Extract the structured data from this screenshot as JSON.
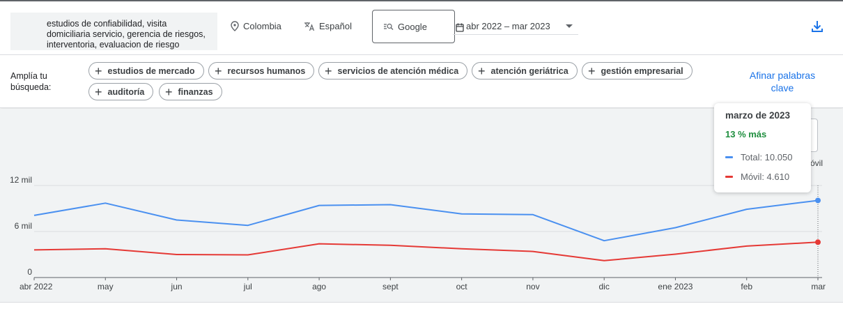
{
  "header": {
    "keywords_text": "estudios de confiabilidad, visita domiciliaria servicio, gerencia de riesgos, interventoria, evaluacion de riesgo",
    "location": "Colombia",
    "language": "Español",
    "search_engine": "Google",
    "date_range": "abr 2022 – mar 2023"
  },
  "refine": {
    "label": "Amplía tu búsqueda:",
    "chips": [
      "estudios de mercado",
      "recursos humanos",
      "servicios de atención médica",
      "atención geriátrica",
      "gestión empresarial",
      "auditoría",
      "finanzas"
    ],
    "link": "Afinar palabras clave"
  },
  "background_text": {
    "movil_label": "óvil"
  },
  "tooltip": {
    "title": "marzo de 2023",
    "change": "13 % más",
    "total": "Total: 10.050",
    "movil": "Móvil: 4.610"
  },
  "colors": {
    "total": "#4a90f0",
    "movil": "#e53935",
    "accent": "#1a73e8",
    "positive": "#1e8e3e"
  },
  "icons": [
    "location-pin-icon",
    "translate-icon",
    "search-engine-icon",
    "calendar-icon",
    "chevron-down-icon",
    "download-icon",
    "plus-icon"
  ],
  "chart_data": {
    "type": "line",
    "categories": [
      "abr 2022",
      "may",
      "jun",
      "jul",
      "ago",
      "sept",
      "oct",
      "nov",
      "dic",
      "ene 2023",
      "feb",
      "mar"
    ],
    "series": [
      {
        "name": "Total",
        "values": [
          8100,
          9700,
          7500,
          6800,
          9400,
          9500,
          8300,
          8200,
          4800,
          6500,
          8900,
          10050
        ]
      },
      {
        "name": "Móvil",
        "values": [
          3600,
          3750,
          3000,
          2950,
          4400,
          4200,
          3750,
          3400,
          2200,
          3050,
          4100,
          4610
        ]
      }
    ],
    "y_ticks": [
      "0",
      "6 mil",
      "12 mil"
    ],
    "y_tick_values": [
      0,
      6000,
      12000
    ],
    "ylim": [
      0,
      12000
    ],
    "grid": true,
    "highlighted_index": 11
  }
}
